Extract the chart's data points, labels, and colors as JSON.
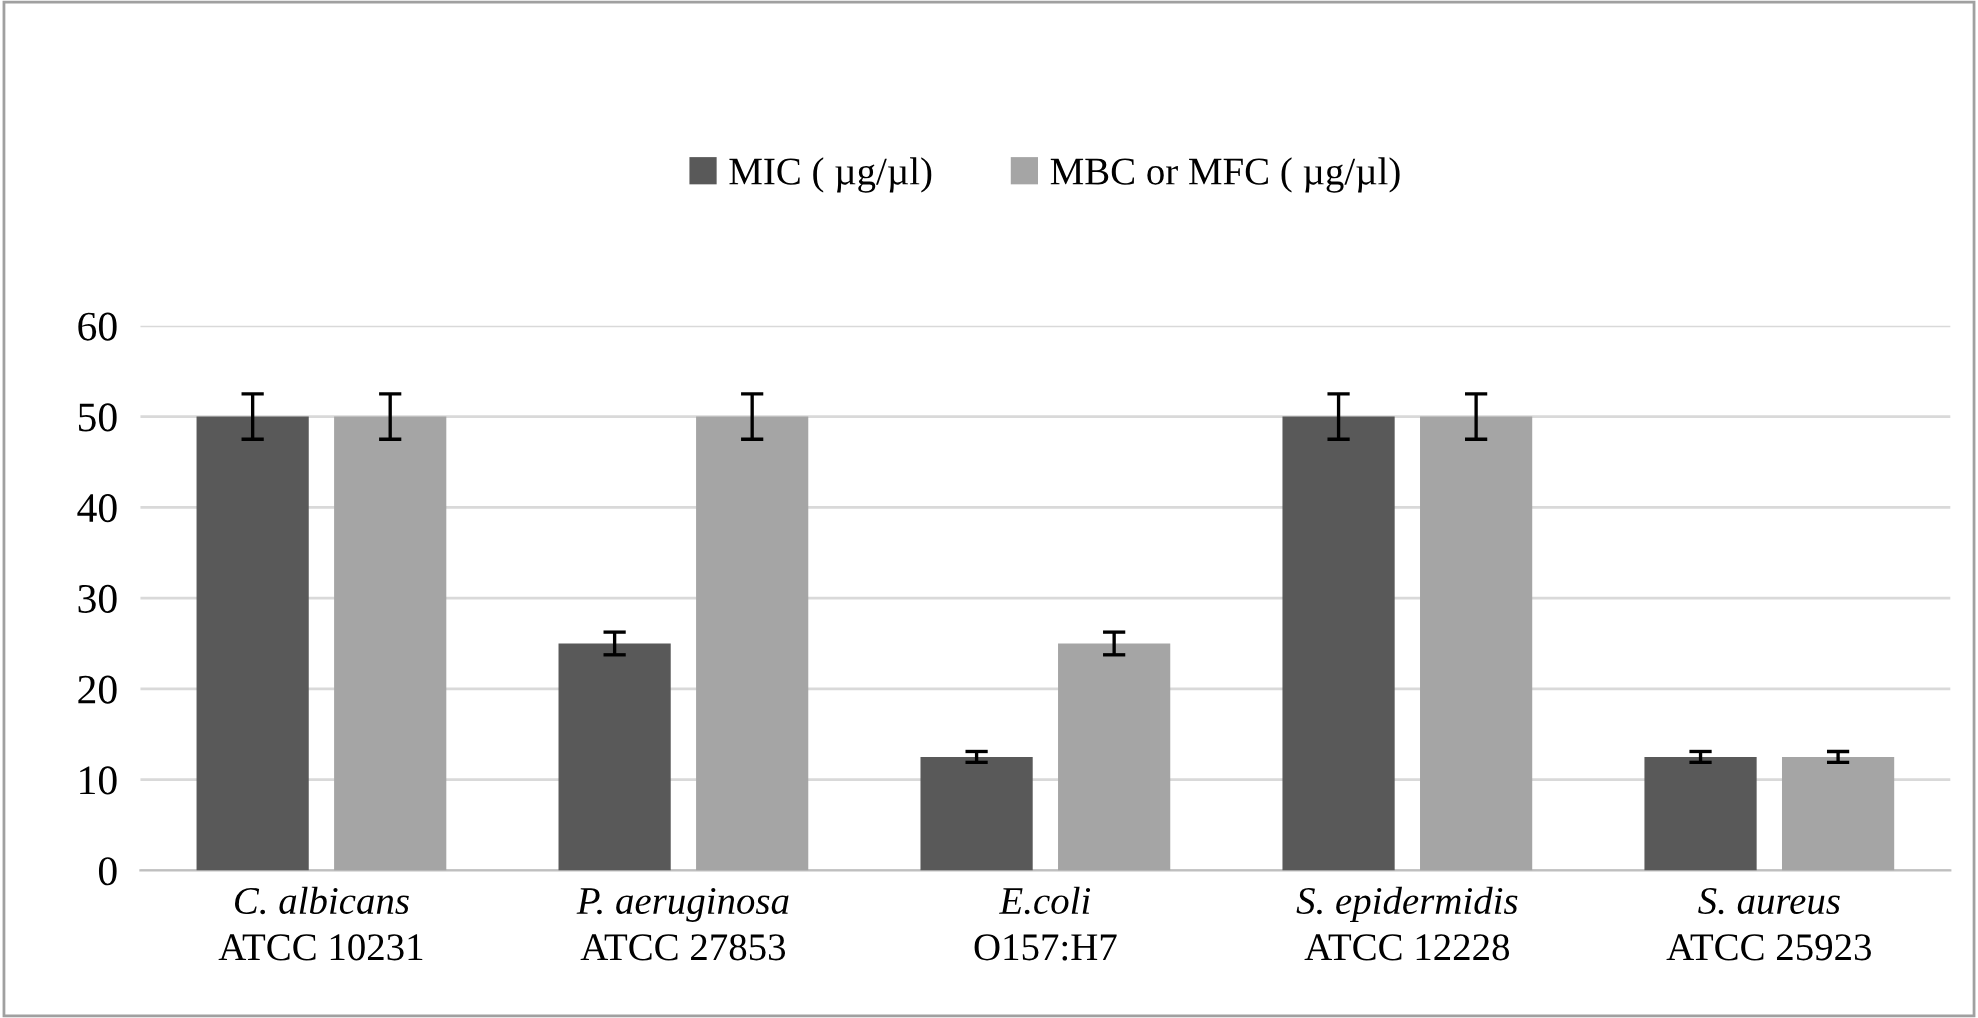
{
  "chart_data": {
    "type": "bar",
    "categories": [
      "C. albicans\nATCC 10231",
      "P. aeruginosa\nATCC 27853",
      "E.coli\nO157:H7",
      "S. epidermidis\nATCC 12228",
      "S. aureus\nATCC 25923"
    ],
    "series": [
      {
        "name": "MIC ( µg/µl)",
        "color": "#595959",
        "values": [
          50,
          25,
          12.5,
          50,
          12.5
        ],
        "errors": [
          2.5,
          1.25,
          0.6,
          2.5,
          0.6
        ]
      },
      {
        "name": "MBC or MFC ( µg/µl)",
        "color": "#a5a5a5",
        "values": [
          50,
          50,
          25,
          50,
          12.5
        ],
        "errors": [
          2.5,
          2.5,
          1.25,
          2.5,
          0.6
        ]
      }
    ],
    "ylim": [
      0,
      60
    ],
    "yticks": [
      0,
      10,
      20,
      30,
      40,
      50,
      60
    ],
    "grid": "y",
    "legend": "top"
  }
}
